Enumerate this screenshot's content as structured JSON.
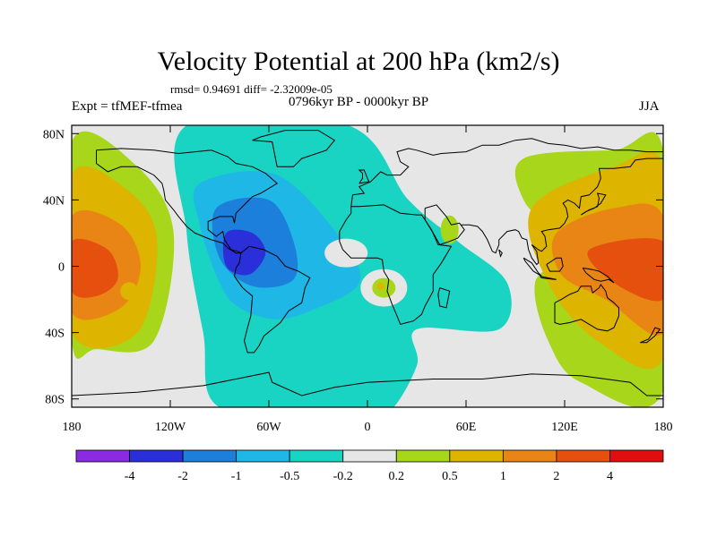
{
  "title": "Velocity Potential at 200 hPa (km2/s)",
  "stats": "rmsd= 0.94691  diff= -2.32009e-05",
  "experiment": "Expt = tfMEF-tfmea",
  "period": "0796kyr BP - 0000kyr BP",
  "season": "JJA",
  "lat_ticks": [
    "80N",
    "40N",
    "0",
    "40S",
    "80S"
  ],
  "lon_ticks": [
    "180",
    "120W",
    "60W",
    "0",
    "60E",
    "120E",
    "180"
  ],
  "colorbar": {
    "labels": [
      "-4",
      "-2",
      "-1",
      "-0.5",
      "-0.2",
      "0.2",
      "0.5",
      "1",
      "2",
      "4"
    ],
    "colors": [
      "#8A2BE2",
      "#2B2FD9",
      "#1C7FDB",
      "#1FB8E6",
      "#19D3C3",
      "#E6E6E6",
      "#A8D61A",
      "#DDB400",
      "#E98515",
      "#E5500F",
      "#E00F0F"
    ]
  },
  "fields": {
    "negative": [
      {
        "level": "-0.2",
        "color": "#19D3C3",
        "blobs": [
          [
            -110,
            85,
            -12,
            85,
            25,
            40,
            55,
            15,
            85,
            -10,
            80,
            -38,
            30,
            -38,
            30,
            -60,
            10,
            -90,
            -20,
            -85,
            -90,
            -85,
            -100,
            -40,
            -110,
            20
          ]
        ]
      },
      {
        "level": "-0.5",
        "color": "#1FB8E6",
        "blobs": [
          [
            -102,
            50,
            -55,
            55,
            -15,
            15,
            -5,
            -10,
            -30,
            -25,
            -55,
            -32,
            -78,
            -25,
            -90,
            -10,
            -102,
            25
          ]
        ]
      },
      {
        "level": "-1",
        "color": "#1C7FDB",
        "blobs": [
          [
            -92,
            35,
            -60,
            40,
            -45,
            15,
            -45,
            -8,
            -70,
            -12,
            -90,
            5
          ]
        ]
      },
      {
        "level": "-2",
        "color": "#2B2FD9",
        "blobs": [
          [
            -86,
            20,
            -70,
            20,
            -62,
            8,
            -72,
            -5,
            -86,
            0
          ]
        ]
      }
    ],
    "positive": [
      {
        "level": "0.2",
        "color": "#A8D61A",
        "blobs": [
          [
            -180,
            75,
            -140,
            60,
            -118,
            20,
            -130,
            -45,
            -165,
            -50,
            -180,
            -45
          ],
          [
            95,
            65,
            150,
            70,
            180,
            70,
            180,
            -75,
            130,
            -70,
            110,
            -45,
            102,
            -10,
            120,
            10,
            95,
            40
          ]
        ]
      },
      {
        "level": "0.5",
        "color": "#DDB400",
        "blobs": [
          [
            -180,
            55,
            -145,
            45,
            -128,
            15,
            -140,
            -40,
            -180,
            -40
          ],
          [
            100,
            35,
            150,
            60,
            180,
            60,
            180,
            -55,
            140,
            -45,
            110,
            -10
          ]
        ]
      },
      {
        "level": "1",
        "color": "#E98515",
        "blobs": [
          [
            -180,
            30,
            -150,
            25,
            -138,
            0,
            -150,
            -25,
            -180,
            -28
          ],
          [
            115,
            20,
            150,
            35,
            180,
            30,
            180,
            -40,
            145,
            -20,
            118,
            -5
          ]
        ]
      },
      {
        "level": "2",
        "color": "#E5500F",
        "blobs": [
          [
            -180,
            15,
            -158,
            10,
            -152,
            -8,
            -165,
            -18,
            -180,
            -15
          ],
          [
            135,
            10,
            180,
            15,
            180,
            -20,
            150,
            -10
          ]
        ]
      }
    ]
  }
}
